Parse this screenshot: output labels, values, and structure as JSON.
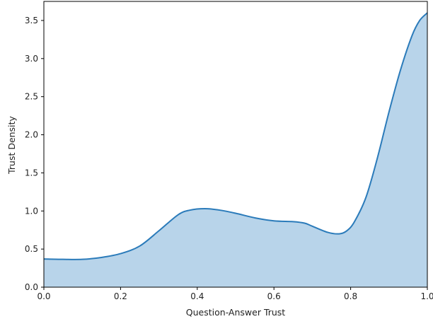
{
  "chart_data": {
    "type": "area",
    "title": "",
    "xlabel": "Question-Answer Trust",
    "ylabel": "Trust Density",
    "xlim": [
      0.0,
      1.0
    ],
    "ylim": [
      0.0,
      3.75
    ],
    "xticks": [
      0.0,
      0.2,
      0.4,
      0.6,
      0.8,
      1.0
    ],
    "xtick_labels": [
      "0.0",
      "0.2",
      "0.4",
      "0.6",
      "0.8",
      "1.0"
    ],
    "yticks": [
      0.0,
      0.5,
      1.0,
      1.5,
      2.0,
      2.5,
      3.0,
      3.5
    ],
    "ytick_labels": [
      "0.0",
      "0.5",
      "1.0",
      "1.5",
      "2.0",
      "2.5",
      "3.0",
      "3.5"
    ],
    "grid": false,
    "series": [
      {
        "x": [
          0.0,
          0.05,
          0.1,
          0.15,
          0.2,
          0.25,
          0.3,
          0.35,
          0.38,
          0.42,
          0.46,
          0.5,
          0.55,
          0.6,
          0.65,
          0.68,
          0.7,
          0.74,
          0.77,
          0.79,
          0.81,
          0.84,
          0.87,
          0.9,
          0.93,
          0.96,
          0.98,
          1.0
        ],
        "y": [
          0.37,
          0.365,
          0.365,
          0.39,
          0.44,
          0.54,
          0.74,
          0.95,
          1.01,
          1.03,
          1.01,
          0.97,
          0.91,
          0.87,
          0.86,
          0.84,
          0.8,
          0.72,
          0.7,
          0.74,
          0.86,
          1.18,
          1.7,
          2.3,
          2.85,
          3.3,
          3.5,
          3.6
        ]
      }
    ],
    "line_color": "#2b7bba",
    "fill_color": "#b8d4ea"
  }
}
